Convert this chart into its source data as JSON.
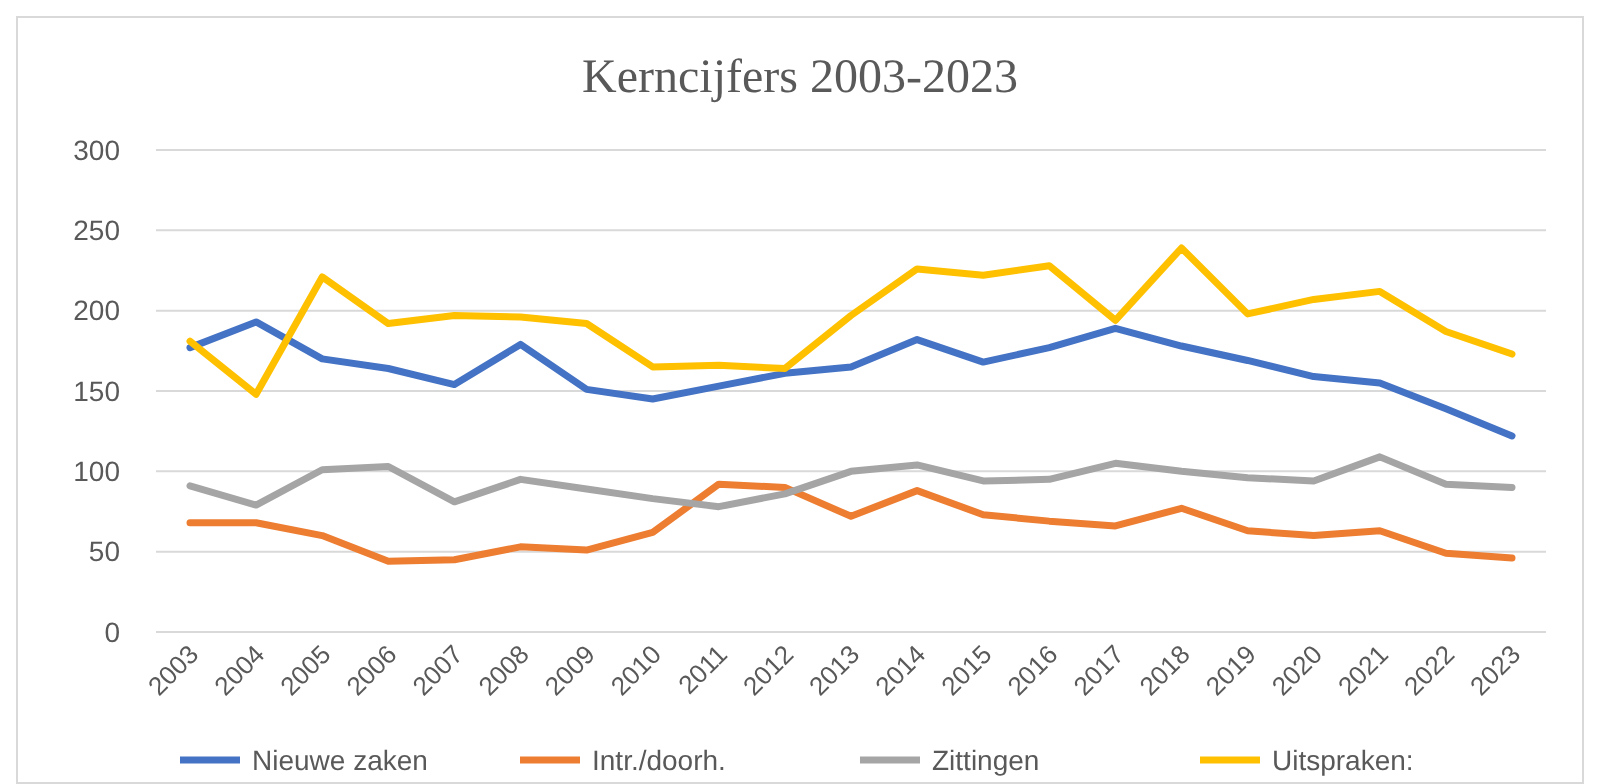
{
  "chart_data": {
    "type": "line",
    "title": "Kerncijfers 2003-2023",
    "categories": [
      "2003",
      "2004",
      "2005",
      "2006",
      "2007",
      "2008",
      "2009",
      "2010",
      "2011",
      "2012",
      "2013",
      "2014",
      "2015",
      "2016",
      "2017",
      "2018",
      "2019",
      "2020",
      "2021",
      "2022",
      "2023"
    ],
    "series": [
      {
        "name": "Nieuwe zaken",
        "color": "#4472c4",
        "values": [
          177,
          193,
          170,
          164,
          154,
          179,
          151,
          145,
          153,
          161,
          165,
          182,
          168,
          177,
          189,
          178,
          169,
          159,
          155,
          139,
          122
        ]
      },
      {
        "name": "Intr./doorh.",
        "color": "#ed7d31",
        "values": [
          68,
          68,
          60,
          44,
          45,
          53,
          51,
          62,
          92,
          90,
          72,
          88,
          73,
          69,
          66,
          77,
          63,
          60,
          63,
          49,
          46
        ]
      },
      {
        "name": "Zittingen",
        "color": "#a5a5a5",
        "values": [
          91,
          79,
          101,
          103,
          81,
          95,
          89,
          83,
          78,
          86,
          100,
          104,
          94,
          95,
          105,
          100,
          96,
          94,
          109,
          92,
          90
        ]
      },
      {
        "name": "Uitspraken:",
        "color": "#ffc000",
        "values": [
          181,
          148,
          221,
          192,
          197,
          196,
          192,
          165,
          166,
          164,
          197,
          226,
          222,
          228,
          194,
          239,
          198,
          207,
          212,
          187,
          173
        ]
      }
    ],
    "ylim": [
      0,
      300
    ],
    "yticks": [
      0,
      50,
      100,
      150,
      200,
      250,
      300
    ],
    "grid": "y",
    "legend": "bottom",
    "marker": "none",
    "line_style": "solid"
  }
}
